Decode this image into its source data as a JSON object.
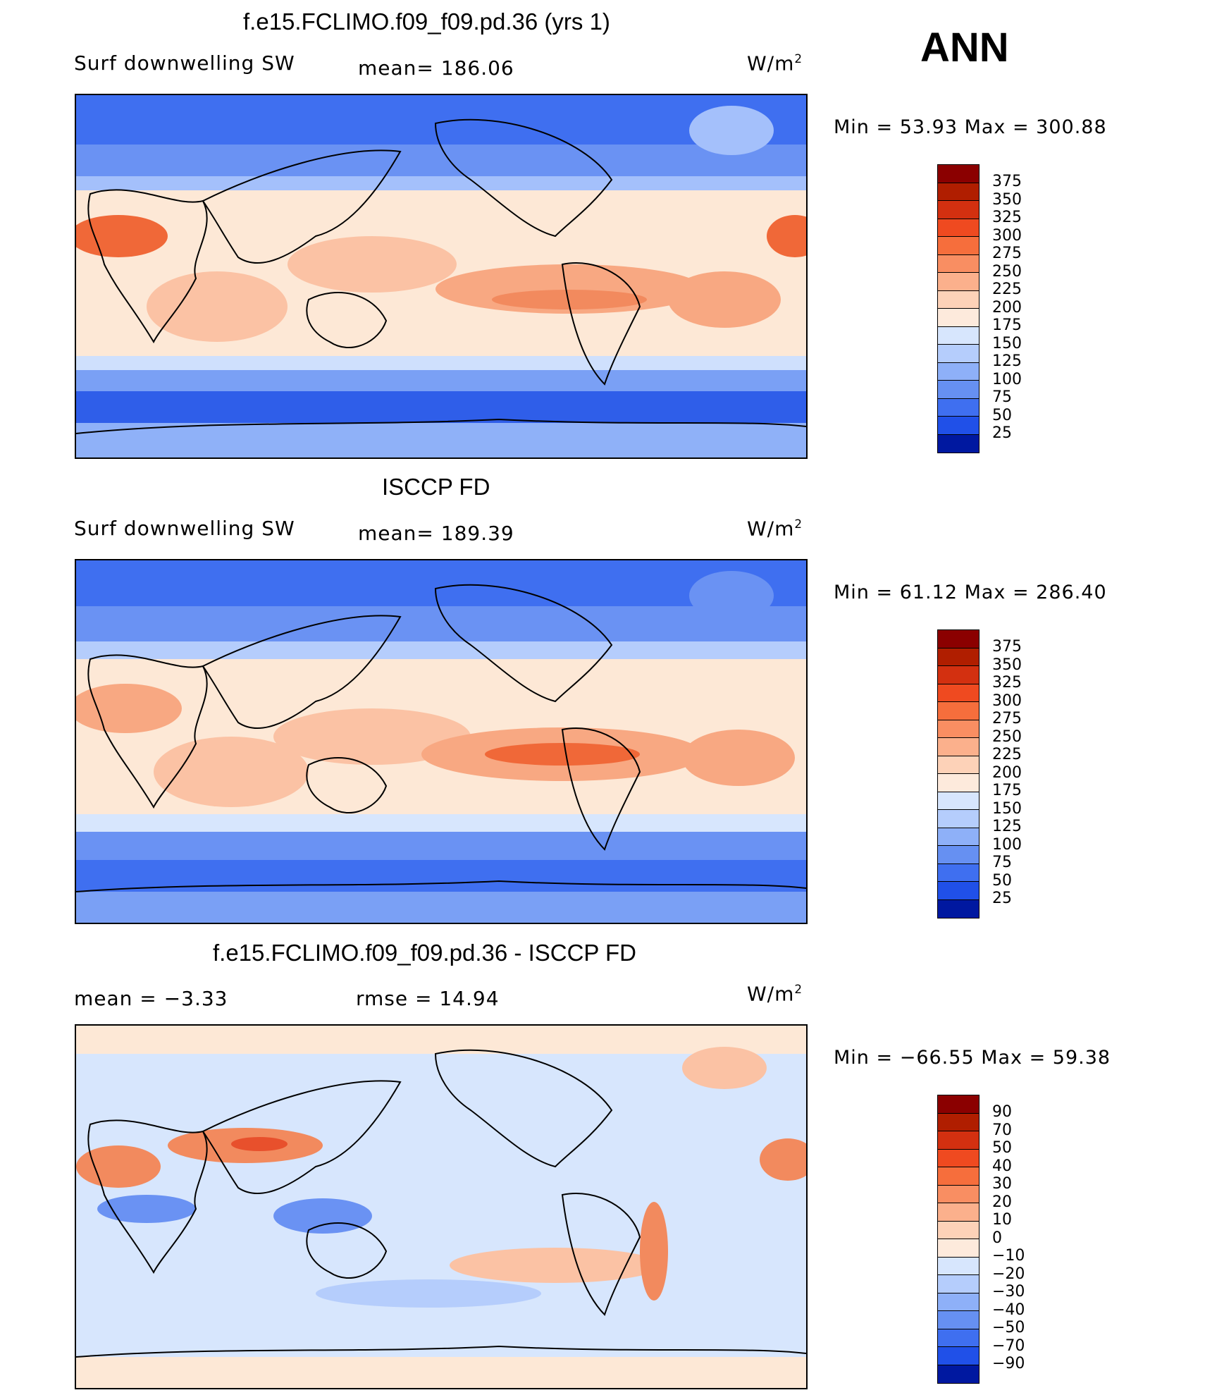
{
  "season": "ANN",
  "units_base": "W/m",
  "units_exp": "2",
  "palette": {
    "deep_blue": "#1a3fe0",
    "blue": "#3f6ff0",
    "light_blue": "#a4c0fb",
    "cream": "#fde8d6",
    "peach": "#fbc2a4",
    "orange": "#f78a5c",
    "red": "#e8502c",
    "coast": "#000000"
  },
  "panels": [
    {
      "title": "f.e15.FCLIMO.f09_f09.pd.36 (yrs 1)",
      "variable": "Surf downwelling SW",
      "stat1": "mean=  186.06",
      "stat2": "",
      "minmax": "Min  =    53.93  Max  =  300.88"
    },
    {
      "title": "ISCCP FD",
      "variable": "Surf downwelling SW",
      "stat1": "mean=  189.39",
      "stat2": "",
      "minmax": "Min  =    61.12  Max  =  286.40"
    },
    {
      "title": "f.e15.FCLIMO.f09_f09.pd.36 - ISCCP FD",
      "variable": "mean  =    −3.33",
      "stat1": "rmse  =    14.94",
      "stat2": "",
      "minmax": "Min  = −66.55  Max  =    59.38"
    }
  ],
  "colorbars": [
    {
      "labels": [
        "375",
        "350",
        "325",
        "300",
        "275",
        "250",
        "225",
        "200",
        "175",
        "150",
        "125",
        "100",
        "75",
        "50",
        "25"
      ],
      "colors": [
        "#8b0000",
        "#b01e00",
        "#d33010",
        "#ef4a20",
        "#f66e3c",
        "#f98e62",
        "#fbb08c",
        "#fdd2b8",
        "#fdeadc",
        "#d7e6fd",
        "#b5cdfc",
        "#8eb0f8",
        "#6690f2",
        "#3f6ff0",
        "#2050e8",
        "#0a2fd0",
        "#0018a0"
      ]
    },
    {
      "labels": [
        "375",
        "350",
        "325",
        "300",
        "275",
        "250",
        "225",
        "200",
        "175",
        "150",
        "125",
        "100",
        "75",
        "50",
        "25"
      ],
      "colors": [
        "#8b0000",
        "#b01e00",
        "#d33010",
        "#ef4a20",
        "#f66e3c",
        "#f98e62",
        "#fbb08c",
        "#fdd2b8",
        "#fdeadc",
        "#d7e6fd",
        "#b5cdfc",
        "#8eb0f8",
        "#6690f2",
        "#3f6ff0",
        "#2050e8",
        "#0a2fd0",
        "#0018a0"
      ]
    },
    {
      "labels": [
        "90",
        "70",
        "50",
        "40",
        "30",
        "20",
        "10",
        "0",
        "−10",
        "−20",
        "−30",
        "−40",
        "−50",
        "−70",
        "−90"
      ],
      "colors": [
        "#8b0000",
        "#b01e00",
        "#d33010",
        "#ef4a20",
        "#f66e3c",
        "#f98e62",
        "#fbb08c",
        "#fdd2b8",
        "#fdeadc",
        "#d7e6fd",
        "#b5cdfc",
        "#8eb0f8",
        "#6690f2",
        "#3f6ff0",
        "#2050e8",
        "#0a2fd0",
        "#0018a0"
      ]
    }
  ]
}
